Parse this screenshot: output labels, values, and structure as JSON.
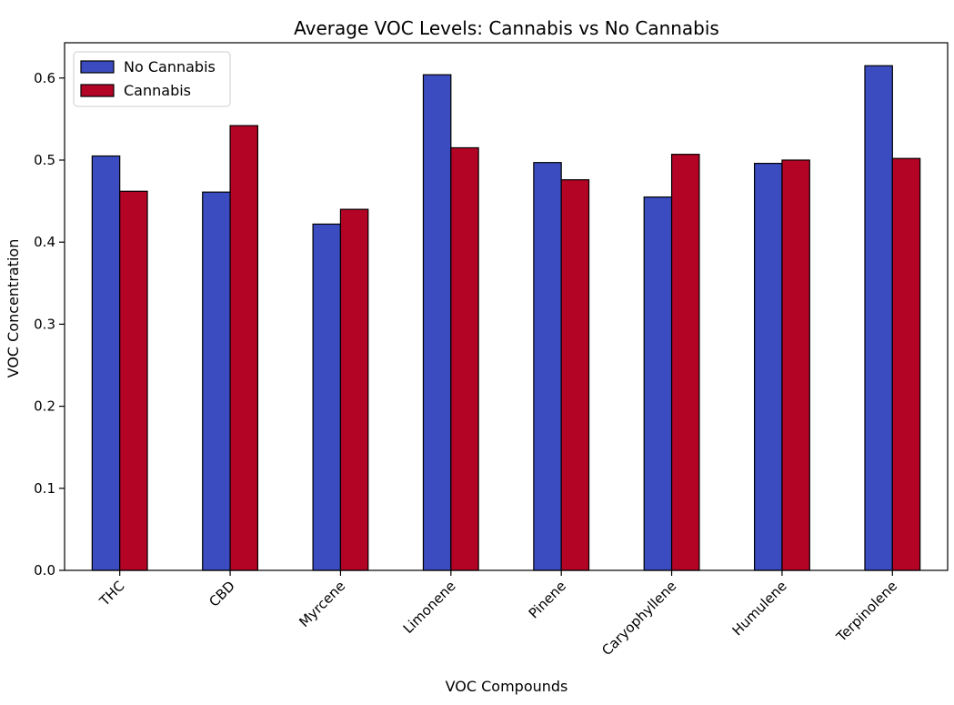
{
  "chart_data": {
    "type": "bar",
    "title": "Average VOC Levels: Cannabis vs No Cannabis",
    "xlabel": "VOC Compounds",
    "ylabel": "VOC Concentration",
    "categories": [
      "THC",
      "CBD",
      "Myrcene",
      "Limonene",
      "Pinene",
      "Caryophyllene",
      "Humulene",
      "Terpinolene"
    ],
    "series": [
      {
        "name": "No Cannabis",
        "color": "#3b4cc0",
        "values": [
          0.505,
          0.461,
          0.422,
          0.604,
          0.497,
          0.455,
          0.496,
          0.615
        ]
      },
      {
        "name": "Cannabis",
        "color": "#b40426",
        "values": [
          0.462,
          0.542,
          0.44,
          0.515,
          0.476,
          0.507,
          0.5,
          0.502
        ]
      }
    ],
    "ylim": [
      0,
      0.643
    ],
    "yticks": [
      "0.0",
      "0.1",
      "0.2",
      "0.3",
      "0.4",
      "0.5",
      "0.6"
    ],
    "legend": "top-left",
    "grid": false
  }
}
